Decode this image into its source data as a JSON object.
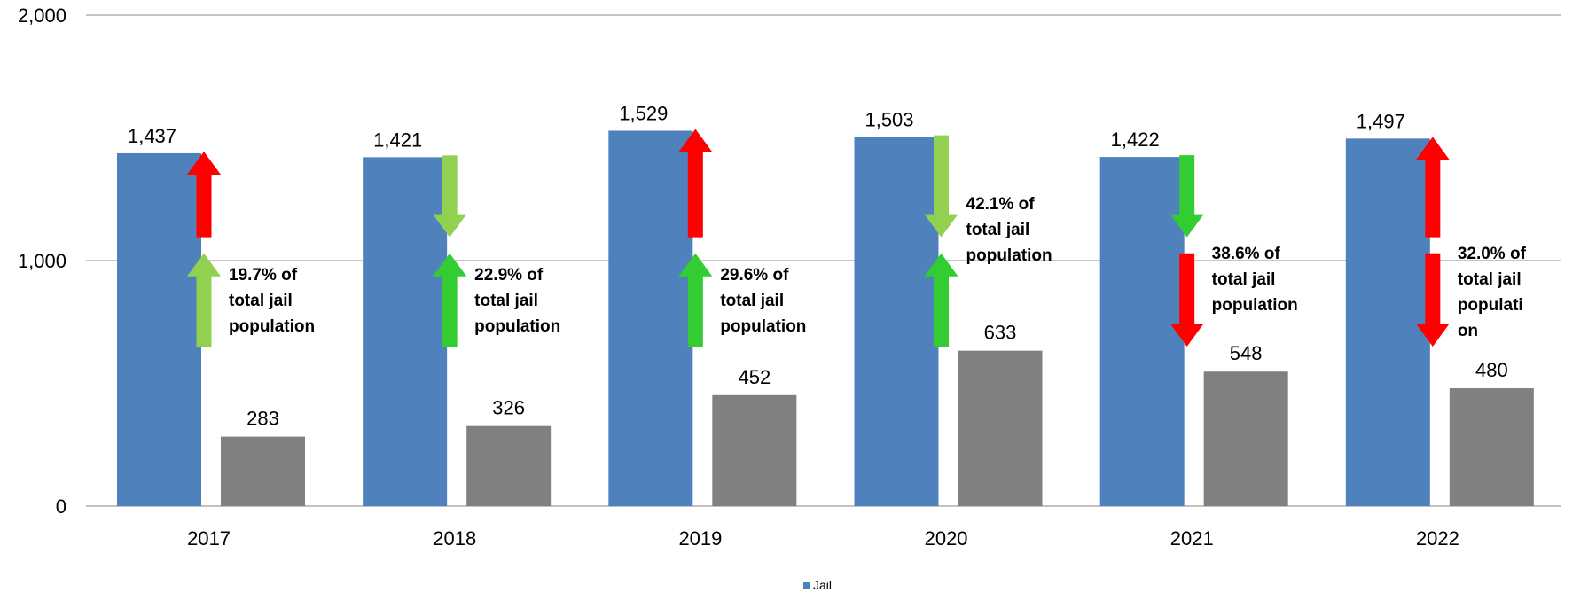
{
  "chart_data": {
    "type": "bar",
    "title": "",
    "xlabel": "",
    "ylabel": "",
    "ylim": [
      0,
      2000
    ],
    "yticks": [
      0,
      1000,
      2000
    ],
    "ytick_labels": [
      "0",
      "1,000",
      "2,000"
    ],
    "grid": true,
    "categories": [
      "2017",
      "2018",
      "2019",
      "2020",
      "2021",
      "2022"
    ],
    "series": [
      {
        "name": "Jail",
        "color": "#4F81BD",
        "values": [
          1437,
          1421,
          1529,
          1503,
          1422,
          1497
        ],
        "labels": [
          "1,437",
          "1,421",
          "1,529",
          "1,503",
          "1,422",
          "1,497"
        ]
      },
      {
        "color": "#808080",
        "values": [
          283,
          326,
          452,
          633,
          548,
          480
        ],
        "labels": [
          "283",
          "326",
          "452",
          "633",
          "548",
          "480"
        ]
      }
    ],
    "legend": {
      "placement": "bottom",
      "entries": [
        {
          "label": "Jail",
          "color": "#4F81BD"
        }
      ]
    },
    "annotations": [
      {
        "year": "2017",
        "lines": [
          "19.7% of",
          "total jail",
          "population"
        ],
        "upper_arrow": {
          "direction": "up",
          "color": "#FF0000"
        },
        "lower_arrow": {
          "direction": "up",
          "color": "#92D050"
        }
      },
      {
        "year": "2018",
        "lines": [
          "22.9% of",
          "total jail",
          "population"
        ],
        "upper_arrow": {
          "direction": "down",
          "color": "#92D050"
        },
        "lower_arrow": {
          "direction": "up",
          "color": "#33CC33"
        }
      },
      {
        "year": "2019",
        "lines": [
          "29.6% of",
          "total jail",
          "population"
        ],
        "upper_arrow": {
          "direction": "up",
          "color": "#FF0000"
        },
        "lower_arrow": {
          "direction": "up",
          "color": "#33CC33"
        }
      },
      {
        "year": "2020",
        "lines": [
          "42.1% of",
          "total jail",
          "population"
        ],
        "upper_arrow": {
          "direction": "down",
          "color": "#92D050"
        },
        "lower_arrow": {
          "direction": "up",
          "color": "#33CC33"
        }
      },
      {
        "year": "2021",
        "lines": [
          "38.6% of",
          "total jail",
          "population"
        ],
        "upper_arrow": {
          "direction": "down",
          "color": "#33CC33"
        },
        "lower_arrow": {
          "direction": "down",
          "color": "#FF0000"
        }
      },
      {
        "year": "2022",
        "lines": [
          "32.0% of",
          "total jail",
          "populati",
          "on"
        ],
        "upper_arrow": {
          "direction": "up",
          "color": "#FF0000"
        },
        "lower_arrow": {
          "direction": "down",
          "color": "#FF0000"
        }
      }
    ]
  }
}
